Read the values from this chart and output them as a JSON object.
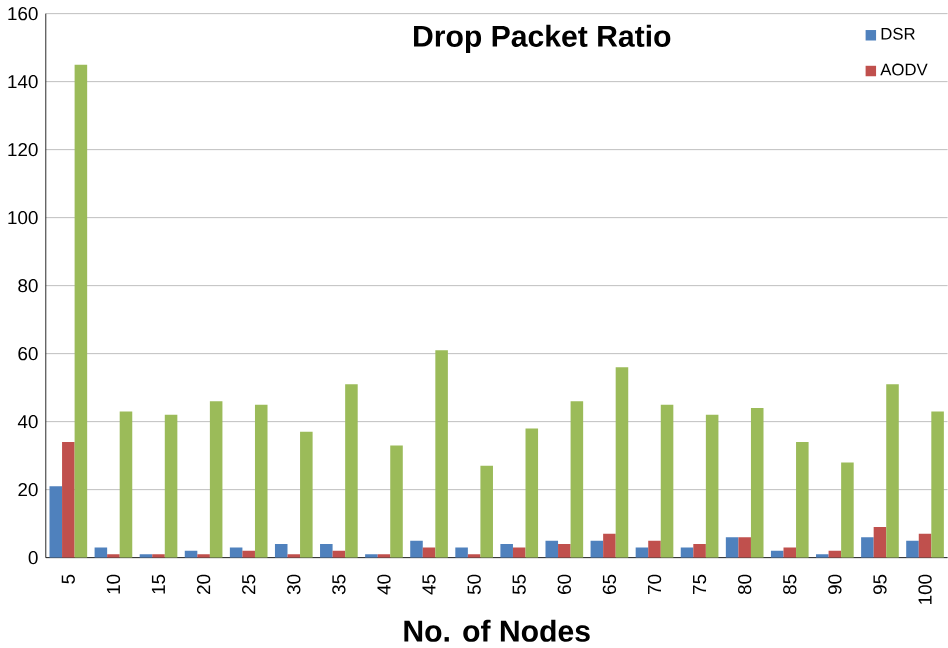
{
  "chart_data": {
    "type": "bar",
    "title": "Drop Packet Ratio",
    "xlabel": "No. of Nodes",
    "categories": [
      "5",
      "10",
      "15",
      "20",
      "25",
      "30",
      "35",
      "40",
      "45",
      "50",
      "55",
      "60",
      "65",
      "70",
      "75",
      "80",
      "85",
      "90",
      "95",
      "100"
    ],
    "series": [
      {
        "name": "DSR",
        "color": "#4f81bd",
        "values": [
          21,
          3,
          1,
          2,
          3,
          4,
          4,
          1,
          5,
          3,
          4,
          5,
          5,
          3,
          3,
          6,
          2,
          1,
          6,
          5
        ]
      },
      {
        "name": "AODV",
        "color": "#c0504d",
        "values": [
          34,
          1,
          1,
          1,
          2,
          1,
          2,
          1,
          3,
          1,
          3,
          4,
          7,
          5,
          4,
          6,
          3,
          2,
          9,
          7
        ]
      },
      {
        "color": "#9bbb59",
        "values": [
          145,
          43,
          42,
          46,
          45,
          37,
          51,
          33,
          61,
          27,
          38,
          46,
          56,
          45,
          42,
          44,
          34,
          28,
          51,
          43
        ]
      }
    ],
    "ylim": [
      0,
      160
    ],
    "yticks": [
      0,
      20,
      40,
      60,
      80,
      100,
      120,
      140,
      160
    ],
    "grid": "y",
    "legend": "top right"
  }
}
